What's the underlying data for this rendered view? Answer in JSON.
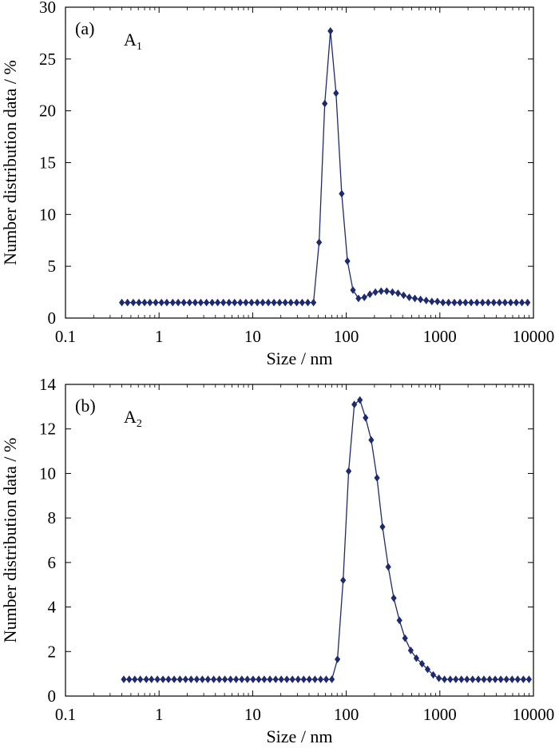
{
  "chart_data": [
    {
      "type": "scatter",
      "panel_label": "(a)",
      "sample_label": {
        "main": "A",
        "sub": "1"
      },
      "xlabel": "Size / nm",
      "ylabel": "Number distribution data / %",
      "xscale": "log",
      "xlim": [
        0.1,
        10000
      ],
      "ylim": [
        0,
        30
      ],
      "xticks": [
        "0.1",
        "1",
        "10",
        "100",
        "1000",
        "10000"
      ],
      "yticks": [
        "0",
        "5",
        "10",
        "15",
        "20",
        "25",
        "30"
      ],
      "grid": false,
      "marker": "diamond",
      "line": true,
      "color": "#1f2a6e",
      "points": [
        [
          0.4,
          1.5
        ],
        [
          0.46,
          1.5
        ],
        [
          0.53,
          1.5
        ],
        [
          0.61,
          1.5
        ],
        [
          0.7,
          1.5
        ],
        [
          0.8,
          1.5
        ],
        [
          0.92,
          1.5
        ],
        [
          1.06,
          1.5
        ],
        [
          1.21,
          1.5
        ],
        [
          1.4,
          1.5
        ],
        [
          1.6,
          1.5
        ],
        [
          1.84,
          1.5
        ],
        [
          2.12,
          1.5
        ],
        [
          2.43,
          1.5
        ],
        [
          2.79,
          1.5
        ],
        [
          3.21,
          1.5
        ],
        [
          3.69,
          1.5
        ],
        [
          4.23,
          1.5
        ],
        [
          4.86,
          1.5
        ],
        [
          5.59,
          1.5
        ],
        [
          6.42,
          1.5
        ],
        [
          7.37,
          1.5
        ],
        [
          8.47,
          1.5
        ],
        [
          9.73,
          1.5
        ],
        [
          11.2,
          1.5
        ],
        [
          12.8,
          1.5
        ],
        [
          14.7,
          1.5
        ],
        [
          16.9,
          1.5
        ],
        [
          19.4,
          1.5
        ],
        [
          22.3,
          1.5
        ],
        [
          25.6,
          1.5
        ],
        [
          29.5,
          1.5
        ],
        [
          33.8,
          1.5
        ],
        [
          38.9,
          1.5
        ],
        [
          44.7,
          1.5
        ],
        [
          51.3,
          7.3
        ],
        [
          59.0,
          20.7
        ],
        [
          67.8,
          27.7
        ],
        [
          77.8,
          21.7
        ],
        [
          89.4,
          12.0
        ],
        [
          103,
          5.5
        ],
        [
          118,
          2.7
        ],
        [
          135,
          1.9
        ],
        [
          156,
          2.0
        ],
        [
          179,
          2.3
        ],
        [
          205,
          2.5
        ],
        [
          236,
          2.6
        ],
        [
          271,
          2.6
        ],
        [
          311,
          2.5
        ],
        [
          357,
          2.4
        ],
        [
          410,
          2.2
        ],
        [
          471,
          2.0
        ],
        [
          541,
          1.9
        ],
        [
          622,
          1.8
        ],
        [
          714,
          1.7
        ],
        [
          821,
          1.6
        ],
        [
          943,
          1.6
        ],
        [
          1080,
          1.5
        ],
        [
          1240,
          1.5
        ],
        [
          1430,
          1.5
        ],
        [
          1640,
          1.5
        ],
        [
          1880,
          1.5
        ],
        [
          2160,
          1.5
        ],
        [
          2490,
          1.5
        ],
        [
          2860,
          1.5
        ],
        [
          3280,
          1.5
        ],
        [
          3770,
          1.5
        ],
        [
          4330,
          1.5
        ],
        [
          4970,
          1.5
        ],
        [
          5710,
          1.5
        ],
        [
          6560,
          1.5
        ],
        [
          7540,
          1.5
        ],
        [
          8660,
          1.5
        ]
      ]
    },
    {
      "type": "scatter",
      "panel_label": "(b)",
      "sample_label": {
        "main": "A",
        "sub": "2"
      },
      "xlabel": "Size / nm",
      "ylabel": "Number distribution data / %",
      "xscale": "log",
      "xlim": [
        0.1,
        10000
      ],
      "ylim": [
        0,
        14
      ],
      "xticks": [
        "0.1",
        "1",
        "10",
        "100",
        "1000",
        "10000"
      ],
      "yticks": [
        "0",
        "2",
        "4",
        "6",
        "8",
        "10",
        "12",
        "14"
      ],
      "grid": false,
      "marker": "diamond",
      "line": true,
      "color": "#1f2a6e",
      "points": [
        [
          0.42,
          0.75
        ],
        [
          0.48,
          0.75
        ],
        [
          0.55,
          0.75
        ],
        [
          0.63,
          0.75
        ],
        [
          0.73,
          0.75
        ],
        [
          0.83,
          0.75
        ],
        [
          0.96,
          0.75
        ],
        [
          1.1,
          0.75
        ],
        [
          1.26,
          0.75
        ],
        [
          1.45,
          0.75
        ],
        [
          1.67,
          0.75
        ],
        [
          1.92,
          0.75
        ],
        [
          2.2,
          0.75
        ],
        [
          2.53,
          0.75
        ],
        [
          2.9,
          0.75
        ],
        [
          3.33,
          0.75
        ],
        [
          3.83,
          0.75
        ],
        [
          4.4,
          0.75
        ],
        [
          5.05,
          0.75
        ],
        [
          5.8,
          0.75
        ],
        [
          6.66,
          0.75
        ],
        [
          7.65,
          0.75
        ],
        [
          8.79,
          0.75
        ],
        [
          10.1,
          0.75
        ],
        [
          11.6,
          0.75
        ],
        [
          13.3,
          0.75
        ],
        [
          15.3,
          0.75
        ],
        [
          17.6,
          0.75
        ],
        [
          20.2,
          0.75
        ],
        [
          23.2,
          0.75
        ],
        [
          26.6,
          0.75
        ],
        [
          30.6,
          0.75
        ],
        [
          35.1,
          0.75
        ],
        [
          40.3,
          0.75
        ],
        [
          46.3,
          0.75
        ],
        [
          53.2,
          0.75
        ],
        [
          61.1,
          0.75
        ],
        [
          70.2,
          0.75
        ],
        [
          80.6,
          1.65
        ],
        [
          92.6,
          5.2
        ],
        [
          106,
          10.1
        ],
        [
          122,
          13.1
        ],
        [
          140,
          13.3
        ],
        [
          161,
          12.5
        ],
        [
          185,
          11.5
        ],
        [
          213,
          9.8
        ],
        [
          244,
          7.6
        ],
        [
          281,
          5.8
        ],
        [
          322,
          4.4
        ],
        [
          370,
          3.4
        ],
        [
          425,
          2.6
        ],
        [
          489,
          2.05
        ],
        [
          561,
          1.7
        ],
        [
          645,
          1.45
        ],
        [
          740,
          1.2
        ],
        [
          850,
          0.95
        ],
        [
          977,
          0.8
        ],
        [
          1120,
          0.75
        ],
        [
          1290,
          0.75
        ],
        [
          1480,
          0.75
        ],
        [
          1700,
          0.75
        ],
        [
          1950,
          0.75
        ],
        [
          2240,
          0.75
        ],
        [
          2580,
          0.75
        ],
        [
          2960,
          0.75
        ],
        [
          3400,
          0.75
        ],
        [
          3900,
          0.75
        ],
        [
          4480,
          0.75
        ],
        [
          5150,
          0.75
        ],
        [
          5920,
          0.75
        ],
        [
          6790,
          0.75
        ],
        [
          7800,
          0.75
        ],
        [
          8960,
          0.75
        ]
      ]
    }
  ]
}
